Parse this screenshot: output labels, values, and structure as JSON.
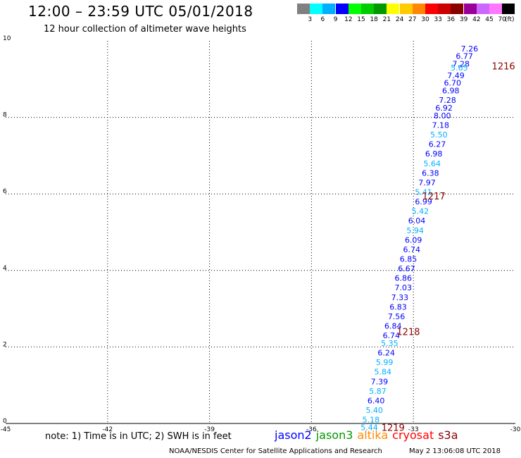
{
  "header": {
    "title": "12:00 – 23:59 UTC 05/01/2018",
    "subtitle": "12 hour collection of altimeter wave heights"
  },
  "colorbar": {
    "colors": [
      "#808080",
      "#00ffff",
      "#00b0ff",
      "#0000ff",
      "#00ff00",
      "#00cc00",
      "#009900",
      "#ffff00",
      "#ffcc00",
      "#ff8800",
      "#ff0000",
      "#cc0000",
      "#880000",
      "#990099",
      "#cc66ff",
      "#ff77ff",
      "#000000"
    ],
    "labels": [
      "3",
      "6",
      "9",
      "12",
      "15",
      "18",
      "21",
      "24",
      "27",
      "30",
      "33",
      "36",
      "39",
      "42",
      "45",
      "70"
    ],
    "unit": "(ft)"
  },
  "map": {
    "lon_range": [
      -45,
      -30
    ],
    "lat_range": [
      0,
      10
    ],
    "x_ticks": [
      "-45",
      "-42",
      "-39",
      "-36",
      "-33",
      "-30"
    ],
    "y_ticks": [
      "0",
      "2",
      "4",
      "6",
      "8",
      "10"
    ],
    "observations": [
      {
        "lon": -31.35,
        "lat": 9.8,
        "value": "7.26"
      },
      {
        "lon": -31.5,
        "lat": 9.6,
        "value": "6.77"
      },
      {
        "lon": -31.6,
        "lat": 9.4,
        "value": "7.28"
      },
      {
        "lon": -31.65,
        "lat": 9.3,
        "value": "5.65"
      },
      {
        "lon": -31.75,
        "lat": 9.1,
        "value": "7.49"
      },
      {
        "lon": -31.85,
        "lat": 8.9,
        "value": "6.70"
      },
      {
        "lon": -31.9,
        "lat": 8.7,
        "value": "6.98"
      },
      {
        "lon": -32.0,
        "lat": 8.45,
        "value": "7.28"
      },
      {
        "lon": -32.1,
        "lat": 8.25,
        "value": "6.92"
      },
      {
        "lon": -32.15,
        "lat": 8.05,
        "value": "8.00"
      },
      {
        "lon": -32.2,
        "lat": 7.8,
        "value": "7.18"
      },
      {
        "lon": -32.25,
        "lat": 7.55,
        "value": "5.50"
      },
      {
        "lon": -32.3,
        "lat": 7.3,
        "value": "6.27"
      },
      {
        "lon": -32.4,
        "lat": 7.05,
        "value": "6.98"
      },
      {
        "lon": -32.45,
        "lat": 6.8,
        "value": "5.64"
      },
      {
        "lon": -32.5,
        "lat": 6.55,
        "value": "6.38"
      },
      {
        "lon": -32.6,
        "lat": 6.3,
        "value": "7.97"
      },
      {
        "lon": -32.7,
        "lat": 6.05,
        "value": "5.41"
      },
      {
        "lon": -32.7,
        "lat": 5.8,
        "value": "6.99"
      },
      {
        "lon": -32.8,
        "lat": 5.55,
        "value": "5.42"
      },
      {
        "lon": -32.9,
        "lat": 5.3,
        "value": "6.04"
      },
      {
        "lon": -32.95,
        "lat": 5.05,
        "value": "5.94"
      },
      {
        "lon": -33.0,
        "lat": 4.8,
        "value": "6.09"
      },
      {
        "lon": -33.05,
        "lat": 4.55,
        "value": "6.74"
      },
      {
        "lon": -33.15,
        "lat": 4.3,
        "value": "6.85"
      },
      {
        "lon": -33.2,
        "lat": 4.05,
        "value": "6.67"
      },
      {
        "lon": -33.3,
        "lat": 3.8,
        "value": "6.86"
      },
      {
        "lon": -33.3,
        "lat": 3.55,
        "value": "7.03"
      },
      {
        "lon": -33.4,
        "lat": 3.3,
        "value": "7.33"
      },
      {
        "lon": -33.45,
        "lat": 3.05,
        "value": "6.83"
      },
      {
        "lon": -33.5,
        "lat": 2.8,
        "value": "7.56"
      },
      {
        "lon": -33.6,
        "lat": 2.55,
        "value": "6.84"
      },
      {
        "lon": -33.65,
        "lat": 2.3,
        "value": "6.74"
      },
      {
        "lon": -33.7,
        "lat": 2.1,
        "value": "5.35"
      },
      {
        "lon": -33.8,
        "lat": 1.85,
        "value": "6.24"
      },
      {
        "lon": -33.85,
        "lat": 1.6,
        "value": "5.99"
      },
      {
        "lon": -33.9,
        "lat": 1.35,
        "value": "5.84"
      },
      {
        "lon": -34.0,
        "lat": 1.1,
        "value": "7.39"
      },
      {
        "lon": -34.05,
        "lat": 0.85,
        "value": "5.87"
      },
      {
        "lon": -34.1,
        "lat": 0.6,
        "value": "6.40"
      },
      {
        "lon": -34.15,
        "lat": 0.35,
        "value": "5.40"
      },
      {
        "lon": -34.25,
        "lat": 0.1,
        "value": "5.18"
      },
      {
        "lon": -34.3,
        "lat": -0.1,
        "value": "5.44"
      }
    ],
    "track_times": [
      {
        "label": "1216",
        "lon": -30.35,
        "lat": 9.35
      },
      {
        "label": "1217",
        "lon": -32.4,
        "lat": 5.95
      },
      {
        "label": "1218",
        "lon": -33.15,
        "lat": 2.4
      },
      {
        "label": "1219",
        "lon": -33.6,
        "lat": -0.1
      }
    ]
  },
  "note": "note: 1) Time is in UTC; 2) SWH is in feet",
  "legend": [
    {
      "label": "jason2",
      "color": "#0000ff"
    },
    {
      "label": "jason3",
      "color": "#009900"
    },
    {
      "label": "altika",
      "color": "#ff8800"
    },
    {
      "label": "cryosat",
      "color": "#ff0000"
    },
    {
      "label": "s3a",
      "color": "#880000"
    }
  ],
  "footer": {
    "credit": "NOAA/NESDIS Center for Satellite Applications and Research",
    "timestamp": "May  2 13:06:08 UTC 2018"
  }
}
